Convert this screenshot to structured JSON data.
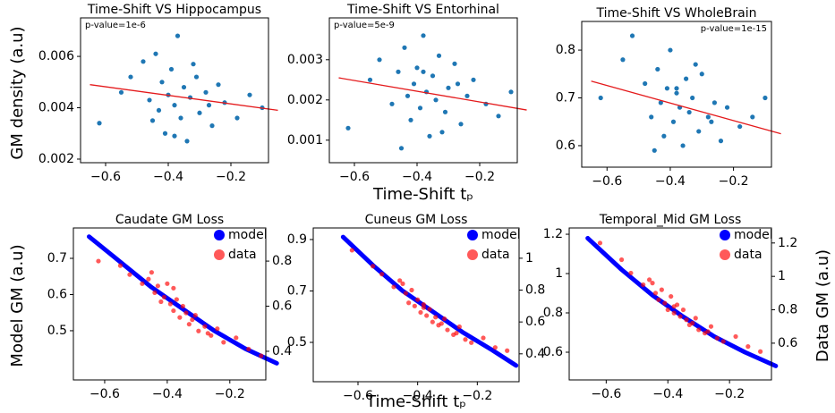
{
  "figure_labels": {
    "ylabel_top": "GM density (a.u)",
    "xlabel_top": "Time-Shift tₚ",
    "ylabel_bottom_left": "Model GM (a.u)",
    "ylabel_bottom_right": "Data GM (a.u)",
    "xlabel_bottom": "Time-Shift tₚ"
  },
  "chart_data": [
    {
      "type": "scatter",
      "title": "Time-Shift VS Hippocampus",
      "annotation": "p-value=1e-6",
      "xlim": [
        -0.68,
        -0.08
      ],
      "ylim": [
        0.00186,
        0.0075
      ],
      "xticks": [
        {
          "value": -0.6,
          "label": "−0.6"
        },
        {
          "value": -0.4,
          "label": "−0.4"
        },
        {
          "value": -0.2,
          "label": "−0.2"
        }
      ],
      "yticks": [
        0.002,
        0.004,
        0.006
      ],
      "points": {
        "color": "#1f77b4",
        "x": [
          -0.62,
          -0.55,
          -0.52,
          -0.48,
          -0.46,
          -0.44,
          -0.43,
          -0.42,
          -0.41,
          -0.4,
          -0.39,
          -0.38,
          -0.37,
          -0.36,
          -0.35,
          -0.34,
          -0.33,
          -0.31,
          -0.3,
          -0.28,
          -0.26,
          -0.24,
          -0.22,
          -0.18,
          -0.14,
          -0.1,
          -0.45,
          -0.38,
          -0.32,
          -0.27
        ],
        "y": [
          0.0034,
          0.0046,
          0.0052,
          0.0058,
          0.0043,
          0.0061,
          0.0039,
          0.005,
          0.003,
          0.0045,
          0.0055,
          0.0041,
          0.0068,
          0.0036,
          0.0048,
          0.0027,
          0.0044,
          0.0052,
          0.0038,
          0.0046,
          0.0033,
          0.0049,
          0.0042,
          0.0036,
          0.0045,
          0.004,
          0.0035,
          0.0029,
          0.0057,
          0.0041
        ]
      },
      "fit_line": {
        "color": "#e41a1c",
        "x": [
          -0.65,
          -0.05
        ],
        "y": [
          0.0049,
          0.0039
        ]
      }
    },
    {
      "type": "scatter",
      "title": "Time-Shift VS Entorhinal",
      "annotation": "p-value=5e-9",
      "xlim": [
        -0.68,
        -0.08
      ],
      "ylim": [
        0.00044,
        0.00404
      ],
      "xticks": [
        {
          "value": -0.6,
          "label": "−0.6"
        },
        {
          "value": -0.4,
          "label": "−0.4"
        },
        {
          "value": -0.2,
          "label": "−0.2"
        }
      ],
      "yticks": [
        0.001,
        0.002,
        0.003
      ],
      "points": {
        "color": "#1f77b4",
        "x": [
          -0.62,
          -0.55,
          -0.52,
          -0.48,
          -0.46,
          -0.44,
          -0.43,
          -0.42,
          -0.41,
          -0.4,
          -0.39,
          -0.38,
          -0.37,
          -0.36,
          -0.35,
          -0.34,
          -0.33,
          -0.31,
          -0.3,
          -0.28,
          -0.26,
          -0.24,
          -0.22,
          -0.18,
          -0.14,
          -0.1,
          -0.45,
          -0.38,
          -0.32,
          -0.27
        ],
        "y": [
          0.0013,
          0.0025,
          0.003,
          0.0019,
          0.0027,
          0.0033,
          0.0021,
          0.0015,
          0.0024,
          0.0028,
          0.0018,
          0.0036,
          0.0022,
          0.0011,
          0.0026,
          0.002,
          0.0031,
          0.0017,
          0.0023,
          0.0029,
          0.0014,
          0.0021,
          0.0025,
          0.0019,
          0.0016,
          0.0022,
          0.0008,
          0.0027,
          0.0012,
          0.0024
        ]
      },
      "fit_line": {
        "color": "#e41a1c",
        "x": [
          -0.65,
          -0.05
        ],
        "y": [
          0.00255,
          0.00175
        ]
      }
    },
    {
      "type": "scatter",
      "title": "Time-Shift VS WholeBrain",
      "annotation": "p-value=1e-15",
      "xlim": [
        -0.68,
        -0.08
      ],
      "ylim": [
        0.555,
        0.86
      ],
      "xticks": [
        {
          "value": -0.6,
          "label": "−0.6"
        },
        {
          "value": -0.4,
          "label": "−0.4"
        },
        {
          "value": -0.2,
          "label": "−0.2"
        }
      ],
      "yticks": [
        0.6,
        0.7,
        0.8
      ],
      "points": {
        "color": "#1f77b4",
        "x": [
          -0.62,
          -0.55,
          -0.52,
          -0.48,
          -0.46,
          -0.44,
          -0.43,
          -0.42,
          -0.41,
          -0.4,
          -0.39,
          -0.38,
          -0.37,
          -0.36,
          -0.35,
          -0.34,
          -0.33,
          -0.31,
          -0.3,
          -0.28,
          -0.26,
          -0.24,
          -0.22,
          -0.18,
          -0.14,
          -0.1,
          -0.45,
          -0.38,
          -0.32,
          -0.27
        ],
        "y": [
          0.7,
          0.78,
          0.83,
          0.73,
          0.66,
          0.76,
          0.69,
          0.62,
          0.72,
          0.8,
          0.65,
          0.71,
          0.68,
          0.6,
          0.74,
          0.67,
          0.7,
          0.63,
          0.75,
          0.66,
          0.69,
          0.61,
          0.68,
          0.64,
          0.66,
          0.7,
          0.59,
          0.72,
          0.77,
          0.65
        ]
      },
      "fit_line": {
        "color": "#e41a1c",
        "x": [
          -0.65,
          -0.05
        ],
        "y": [
          0.735,
          0.625
        ]
      }
    },
    {
      "type": "dual",
      "title": "Caudate GM Loss",
      "xlim": [
        -0.7,
        -0.085
      ],
      "ylim": [
        0.364,
        0.784
      ],
      "y2lim": [
        0.273,
        0.947
      ],
      "xticks": [
        {
          "value": -0.6,
          "label": "−0.6"
        },
        {
          "value": -0.4,
          "label": "−0.4"
        },
        {
          "value": -0.2,
          "label": "−0.2"
        }
      ],
      "yticks": [
        0.5,
        0.6,
        0.7
      ],
      "y2ticks": [
        0.4,
        0.6,
        0.8
      ],
      "series": [
        {
          "name": "model",
          "color": "#0000ff",
          "x": [
            -0.65,
            -0.55,
            -0.45,
            -0.35,
            -0.25,
            -0.15,
            -0.05
          ],
          "values": [
            0.76,
            0.69,
            0.62,
            0.56,
            0.5,
            0.45,
            0.41
          ]
        },
        {
          "name": "data",
          "color": "#ff0000",
          "axis": "y2",
          "x": [
            -0.62,
            -0.55,
            -0.52,
            -0.48,
            -0.46,
            -0.44,
            -0.43,
            -0.42,
            -0.41,
            -0.4,
            -0.39,
            -0.38,
            -0.37,
            -0.36,
            -0.35,
            -0.34,
            -0.33,
            -0.31,
            -0.3,
            -0.28,
            -0.26,
            -0.24,
            -0.22,
            -0.18,
            -0.14,
            -0.1,
            -0.45,
            -0.38,
            -0.32,
            -0.27
          ],
          "values": [
            0.8,
            0.78,
            0.74,
            0.7,
            0.72,
            0.66,
            0.69,
            0.62,
            0.64,
            0.7,
            0.61,
            0.58,
            0.63,
            0.55,
            0.6,
            0.57,
            0.52,
            0.56,
            0.49,
            0.51,
            0.47,
            0.5,
            0.44,
            0.46,
            0.41,
            0.38,
            0.75,
            0.68,
            0.54,
            0.48
          ]
        }
      ]
    },
    {
      "type": "dual",
      "title": "Cuneus GM Loss",
      "xlim": [
        -0.75,
        -0.06
      ],
      "ylim": [
        0.347,
        0.945
      ],
      "y2lim": [
        0.225,
        1.19
      ],
      "xticks": [
        {
          "value": -0.6,
          "label": "−0.6"
        },
        {
          "value": -0.4,
          "label": "−0.4"
        },
        {
          "value": -0.2,
          "label": "−0.2"
        }
      ],
      "yticks": [
        0.5,
        0.7,
        0.9
      ],
      "y2ticks": [
        0.4,
        0.6,
        0.8,
        1.0
      ],
      "series": [
        {
          "name": "model",
          "color": "#0000ff",
          "x": [
            -0.65,
            -0.55,
            -0.45,
            -0.35,
            -0.25,
            -0.15,
            -0.07
          ],
          "values": [
            0.91,
            0.8,
            0.7,
            0.62,
            0.54,
            0.47,
            0.41
          ]
        },
        {
          "name": "data",
          "color": "#ff0000",
          "axis": "y2",
          "x": [
            -0.62,
            -0.55,
            -0.52,
            -0.48,
            -0.46,
            -0.44,
            -0.43,
            -0.42,
            -0.41,
            -0.4,
            -0.39,
            -0.38,
            -0.37,
            -0.36,
            -0.35,
            -0.34,
            -0.33,
            -0.31,
            -0.3,
            -0.28,
            -0.26,
            -0.24,
            -0.22,
            -0.18,
            -0.14,
            -0.1,
            -0.45,
            -0.38,
            -0.32,
            -0.27
          ],
          "values": [
            1.05,
            0.95,
            0.9,
            0.82,
            0.86,
            0.78,
            0.72,
            0.8,
            0.7,
            0.74,
            0.66,
            0.71,
            0.64,
            0.68,
            0.6,
            0.63,
            0.58,
            0.62,
            0.55,
            0.52,
            0.57,
            0.49,
            0.47,
            0.5,
            0.44,
            0.42,
            0.84,
            0.69,
            0.59,
            0.53
          ]
        }
      ]
    },
    {
      "type": "dual",
      "title": "Temporal_Mid GM Loss",
      "xlim": [
        -0.72,
        -0.064
      ],
      "ylim": [
        0.459,
        1.232
      ],
      "y2lim": [
        0.38,
        1.29
      ],
      "xticks": [
        {
          "value": -0.6,
          "label": "−0.6"
        },
        {
          "value": -0.4,
          "label": "−0.4"
        },
        {
          "value": -0.2,
          "label": "−0.2"
        }
      ],
      "yticks": [
        0.6,
        0.8,
        1.0,
        1.2
      ],
      "y2ticks": [
        0.6,
        0.8,
        1.0,
        1.2
      ],
      "series": [
        {
          "name": "model",
          "color": "#0000ff",
          "x": [
            -0.66,
            -0.55,
            -0.45,
            -0.35,
            -0.25,
            -0.15,
            -0.05
          ],
          "values": [
            1.18,
            1.02,
            0.89,
            0.78,
            0.68,
            0.6,
            0.53
          ]
        },
        {
          "name": "data",
          "color": "#ff0000",
          "axis": "y2",
          "x": [
            -0.62,
            -0.55,
            -0.52,
            -0.48,
            -0.46,
            -0.44,
            -0.43,
            -0.42,
            -0.41,
            -0.4,
            -0.39,
            -0.38,
            -0.37,
            -0.36,
            -0.35,
            -0.34,
            -0.33,
            -0.31,
            -0.3,
            -0.28,
            -0.26,
            -0.24,
            -0.22,
            -0.18,
            -0.14,
            -0.1,
            -0.45,
            -0.38,
            -0.32,
            -0.27
          ],
          "values": [
            1.2,
            1.1,
            1.02,
            0.95,
            0.98,
            0.9,
            0.86,
            0.92,
            0.84,
            0.8,
            0.88,
            0.78,
            0.83,
            0.76,
            0.8,
            0.74,
            0.71,
            0.75,
            0.68,
            0.66,
            0.7,
            0.63,
            0.61,
            0.64,
            0.58,
            0.55,
            0.96,
            0.82,
            0.72,
            0.67
          ]
        }
      ]
    }
  ]
}
